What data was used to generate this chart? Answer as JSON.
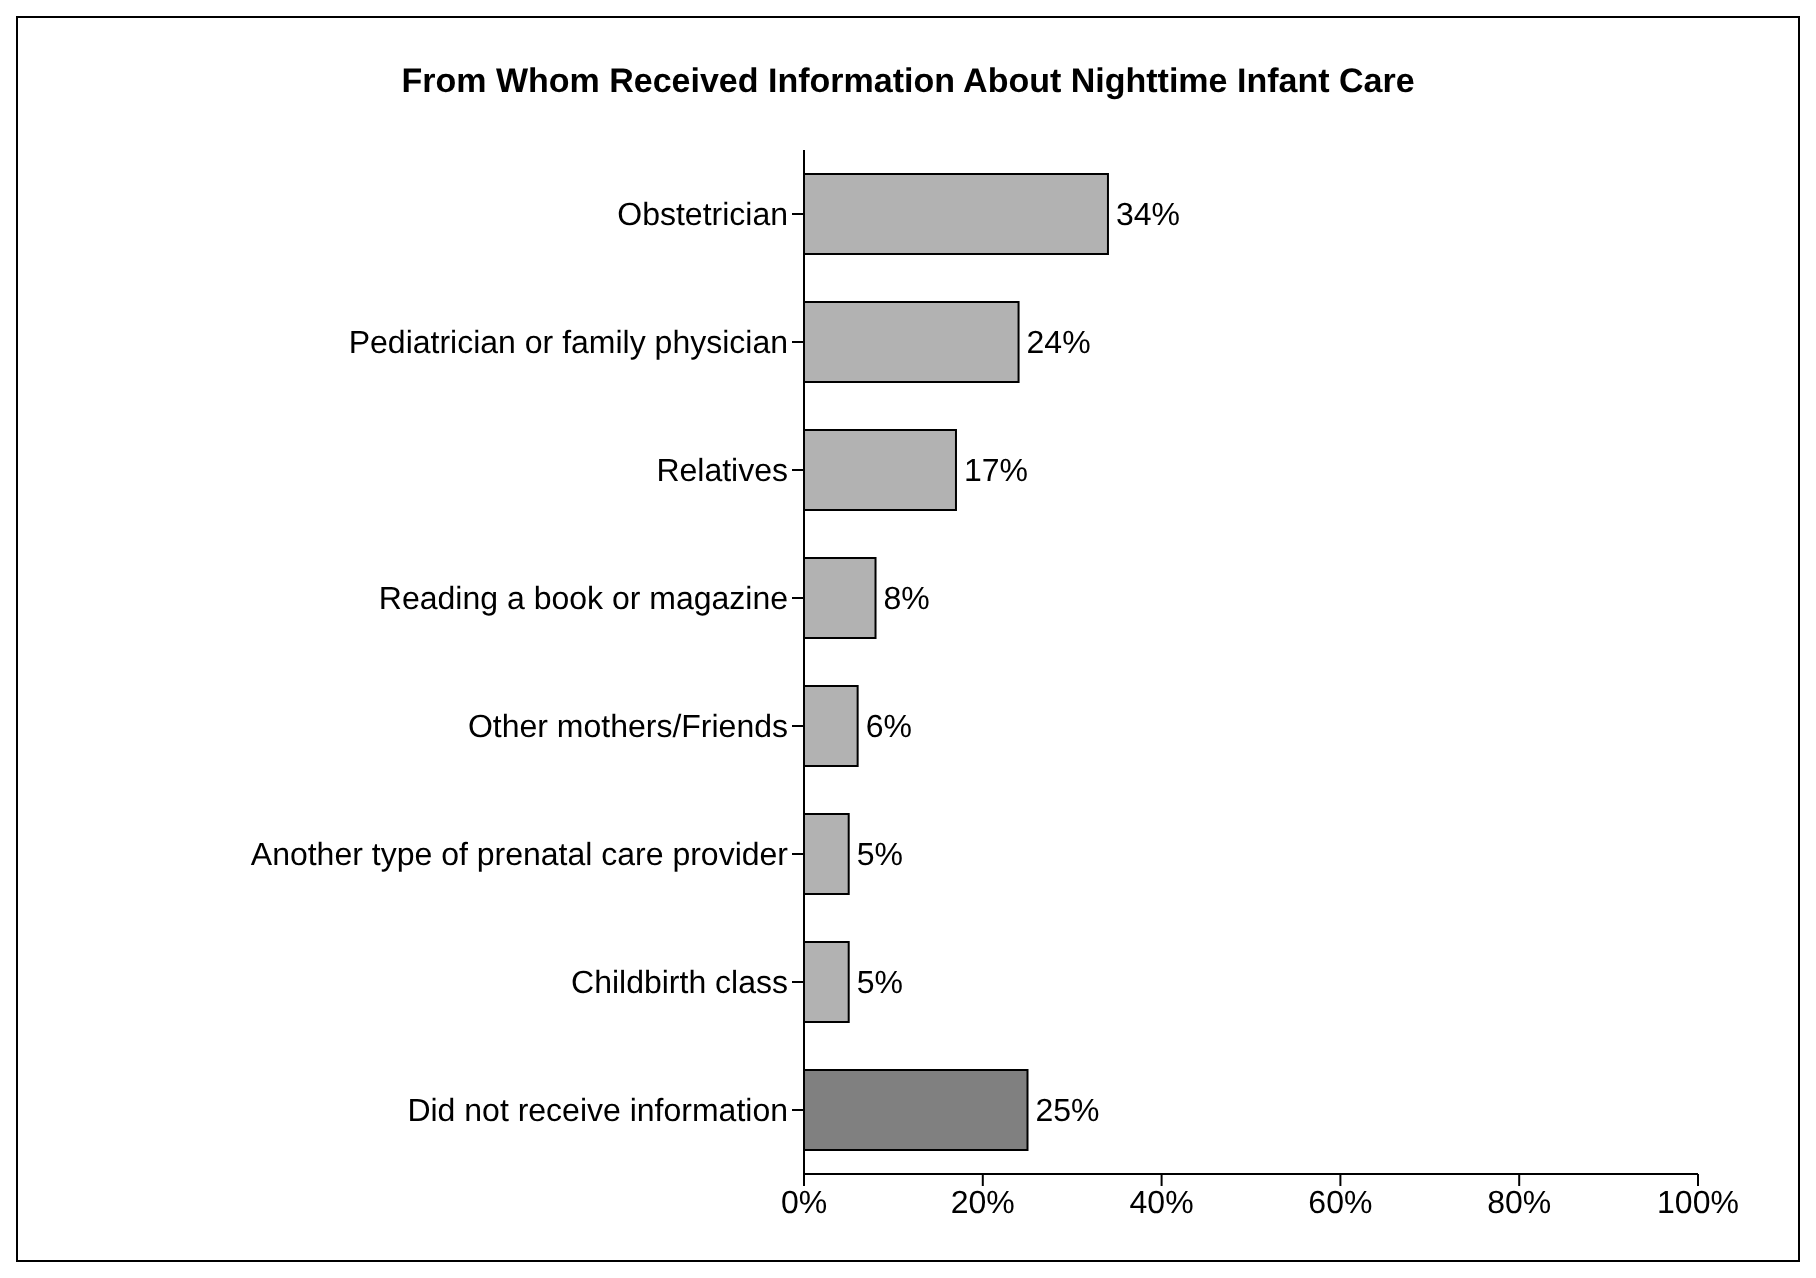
{
  "chart_data": {
    "type": "bar",
    "orientation": "horizontal",
    "title": "From Whom Received Information About Nighttime Infant Care",
    "categories": [
      "Obstetrician",
      "Pediatrician or family physician",
      "Relatives",
      "Reading a book or magazine",
      "Other mothers/Friends",
      "Another type of prenatal care provider",
      "Childbirth class",
      "Did not receive information"
    ],
    "values": [
      34,
      24,
      17,
      8,
      6,
      5,
      5,
      25
    ],
    "colors": [
      "#b2b2b2",
      "#b2b2b2",
      "#b2b2b2",
      "#b2b2b2",
      "#b2b2b2",
      "#b2b2b2",
      "#b2b2b2",
      "#808080"
    ],
    "value_labels": [
      "34%",
      "24%",
      "17%",
      "8%",
      "6%",
      "5%",
      "5%",
      "25%"
    ],
    "xlim": [
      0,
      100
    ],
    "xticks": [
      {
        "value": 0,
        "label": "0%"
      },
      {
        "value": 20,
        "label": "20%"
      },
      {
        "value": 40,
        "label": "40%"
      },
      {
        "value": 60,
        "label": "60%"
      },
      {
        "value": 80,
        "label": "80%"
      },
      {
        "value": 100,
        "label": "100%"
      }
    ],
    "grid": false,
    "legend": false
  }
}
